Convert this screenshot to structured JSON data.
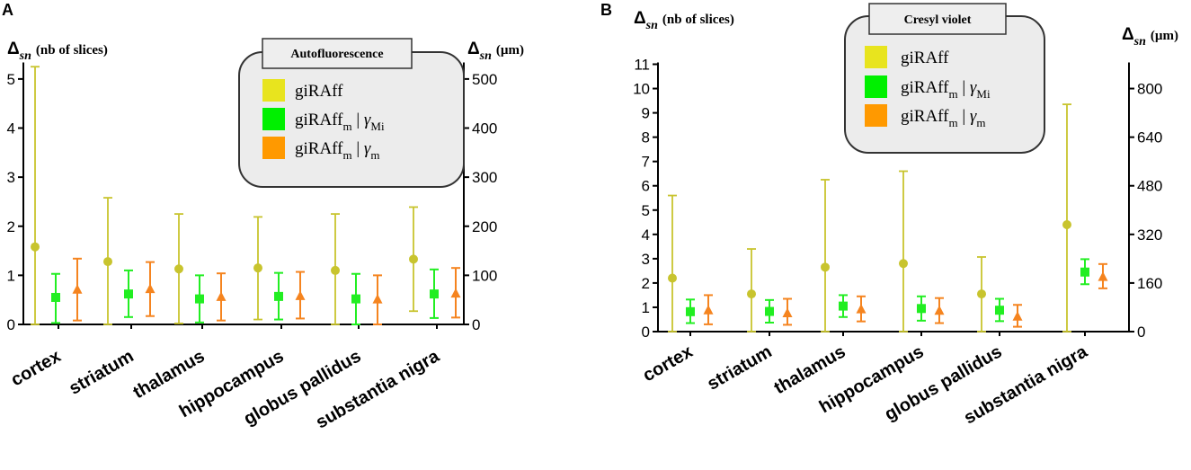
{
  "chart_data": [
    {
      "panel_label": "A",
      "type": "scatter",
      "title": "",
      "ylabel_left": {
        "delta": "Δ",
        "sub": "sn",
        "unit": "(nb of slices)"
      },
      "ylabel_right": {
        "delta": "Δ",
        "sub": "sn",
        "unit": "(µm)"
      },
      "ylim": [
        0,
        5.3
      ],
      "yticks_left": [
        0,
        1,
        2,
        3,
        4,
        5
      ],
      "yticks_right": [
        0,
        100,
        200,
        300,
        400,
        500
      ],
      "right_per_left": 100,
      "categories": [
        "cortex",
        "striatum",
        "thalamus",
        "hippocampus",
        "globus pallidus",
        "substantia nigra"
      ],
      "legend": {
        "title": "Autofluorescence",
        "position": "top-right",
        "entries": [
          {
            "main": "giRAff",
            "sub": "",
            "sep": "",
            "greek": "",
            "greek_sub": ""
          },
          {
            "main": "giRAff",
            "sub": "m",
            "sep": " | ",
            "greek": "γ",
            "greek_sub": "Mi"
          },
          {
            "main": "giRAff",
            "sub": "m",
            "sep": " | ",
            "greek": "γ",
            "greek_sub": "m"
          }
        ]
      },
      "series": [
        {
          "name": "giRAff",
          "color": "#c8c42e",
          "marker": "circle",
          "values": [
            1.58,
            1.28,
            1.13,
            1.15,
            1.1,
            1.33
          ],
          "lower": [
            0.0,
            0.0,
            0.02,
            0.1,
            0.0,
            0.27
          ],
          "upper": [
            5.25,
            2.58,
            2.25,
            2.19,
            2.25,
            2.39
          ]
        },
        {
          "name": "giRAff_m | γ_Mi",
          "color": "#22ee22",
          "marker": "square",
          "values": [
            0.55,
            0.62,
            0.52,
            0.57,
            0.52,
            0.62
          ],
          "lower": [
            0.03,
            0.15,
            0.04,
            0.1,
            0.0,
            0.13
          ],
          "upper": [
            1.03,
            1.1,
            1.0,
            1.05,
            1.03,
            1.12
          ]
        },
        {
          "name": "giRAff_m | γ_m",
          "color": "#f5841f",
          "marker": "triangle",
          "values": [
            0.71,
            0.72,
            0.56,
            0.58,
            0.51,
            0.63
          ],
          "lower": [
            0.08,
            0.17,
            0.08,
            0.12,
            0.0,
            0.14
          ],
          "upper": [
            1.34,
            1.27,
            1.04,
            1.07,
            1.0,
            1.15
          ]
        }
      ]
    },
    {
      "panel_label": "B",
      "type": "scatter",
      "title": "",
      "ylabel_left": {
        "delta": "Δ",
        "sub": "sn",
        "unit": "(nb of slices)"
      },
      "ylabel_right": {
        "delta": "Δ",
        "sub": "sn",
        "unit": "(µm)"
      },
      "ylim": [
        0,
        11
      ],
      "yticks_left": [
        0,
        1,
        2,
        3,
        4,
        5,
        6,
        7,
        8,
        9,
        10,
        11
      ],
      "yticks_right": [
        0,
        160,
        320,
        480,
        640,
        800
      ],
      "right_per_left": 80,
      "categories": [
        "cortex",
        "striatum",
        "thalamus",
        "hippocampus",
        "globus pallidus",
        "substantia nigra"
      ],
      "legend": {
        "title": "Cresyl violet",
        "position": "top-center",
        "entries": [
          {
            "main": "giRAff",
            "sub": "",
            "sep": "",
            "greek": "",
            "greek_sub": ""
          },
          {
            "main": "giRAff",
            "sub": "m",
            "sep": " | ",
            "greek": "γ",
            "greek_sub": "Mi"
          },
          {
            "main": "giRAff",
            "sub": "m",
            "sep": " | ",
            "greek": "γ",
            "greek_sub": "m"
          }
        ]
      },
      "series": [
        {
          "name": "giRAff",
          "color": "#c8c42e",
          "marker": "circle",
          "values": [
            2.2,
            1.55,
            2.65,
            2.8,
            1.55,
            4.4
          ],
          "lower": [
            0.0,
            0.0,
            0.0,
            0.0,
            0.0,
            0.0
          ],
          "upper": [
            5.6,
            3.4,
            6.25,
            6.6,
            3.07,
            9.35
          ]
        },
        {
          "name": "giRAff_m | γ_Mi",
          "color": "#22ee22",
          "marker": "square",
          "values": [
            0.82,
            0.83,
            1.05,
            0.95,
            0.88,
            2.45
          ],
          "lower": [
            0.35,
            0.37,
            0.6,
            0.45,
            0.43,
            1.95
          ],
          "upper": [
            1.32,
            1.3,
            1.5,
            1.45,
            1.35,
            2.98
          ]
        },
        {
          "name": "giRAff_m | γ_m",
          "color": "#f5841f",
          "marker": "triangle",
          "values": [
            0.88,
            0.76,
            0.92,
            0.86,
            0.62,
            2.25
          ],
          "lower": [
            0.3,
            0.28,
            0.42,
            0.35,
            0.2,
            1.78
          ],
          "upper": [
            1.5,
            1.35,
            1.45,
            1.38,
            1.1,
            2.78
          ]
        }
      ]
    }
  ]
}
